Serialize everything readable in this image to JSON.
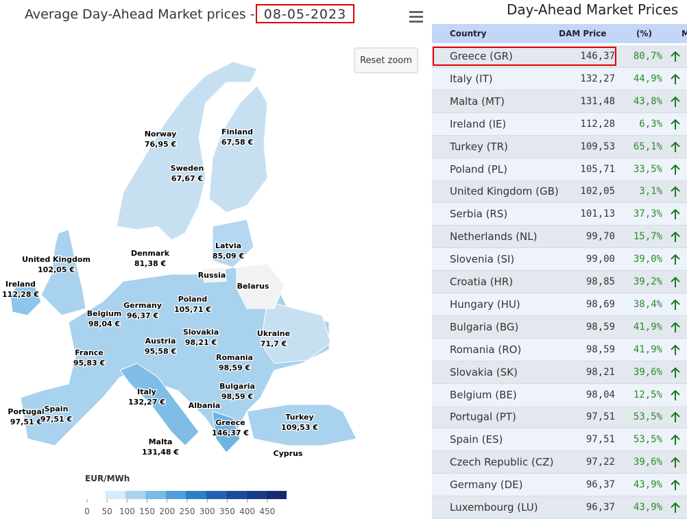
{
  "map": {
    "title": "Average Day-Ahead Market prices -",
    "date": "08-05-2023",
    "reset_button": "Reset zoom",
    "labels": [
      {
        "name": "Norway",
        "price": "76,95 €"
      },
      {
        "name": "Finland",
        "price": "67,58 €"
      },
      {
        "name": "Sweden",
        "price": "67,67 €"
      },
      {
        "name": "Latvia",
        "price": "85,09 €"
      },
      {
        "name": "Denmark",
        "price": "81,38 €"
      },
      {
        "name": "United Kingdom",
        "price": "102,05 €"
      },
      {
        "name": "Ireland",
        "price": "112,28 €"
      },
      {
        "name": "Russia"
      },
      {
        "name": "Belarus"
      },
      {
        "name": "Poland",
        "price": "105,71 €"
      },
      {
        "name": "Germany",
        "price": "96,37 €"
      },
      {
        "name": "Belgium",
        "price": "98,04 €"
      },
      {
        "name": "Ukraine",
        "price": "71,7 €"
      },
      {
        "name": "Slovakia",
        "price": "98,21 €"
      },
      {
        "name": "Austria",
        "price": "95,58 €"
      },
      {
        "name": "France",
        "price": "95,83 €"
      },
      {
        "name": "Romania",
        "price": "98,59 €"
      },
      {
        "name": "Bulgaria",
        "price": "98,59 €"
      },
      {
        "name": "Italy",
        "price": "132,27 €"
      },
      {
        "name": "Albania"
      },
      {
        "name": "Portugal",
        "price": "97,51 €"
      },
      {
        "name": "Spain",
        "price": "97,51 €"
      },
      {
        "name": "Turkey",
        "price": "109,53 €"
      },
      {
        "name": "Greece",
        "price": "146,37 €"
      },
      {
        "name": "Malta",
        "price": "131,48 €"
      },
      {
        "name": "Cyprus"
      }
    ],
    "legend": {
      "title": "EUR/MWh",
      "ticks": [
        0,
        50,
        100,
        150,
        200,
        250,
        300,
        350,
        400,
        450
      ]
    }
  },
  "table": {
    "title": "Day-Ahead Market Prices",
    "headers": [
      "Country",
      "DAM Price",
      "(%)",
      "M"
    ],
    "rows": [
      [
        "Greece (GR)",
        "146,37",
        "80,7%"
      ],
      [
        "Italy (IT)",
        "132,27",
        "44,9%"
      ],
      [
        "Malta (MT)",
        "131,48",
        "43,8%"
      ],
      [
        "Ireland (IE)",
        "112,28",
        "6,3%"
      ],
      [
        "Turkey (TR)",
        "109,53",
        "65,1%"
      ],
      [
        "Poland (PL)",
        "105,71",
        "33,5%"
      ],
      [
        "United Kingdom (GB)",
        "102,05",
        "3,1%"
      ],
      [
        "Serbia (RS)",
        "101,13",
        "37,3%"
      ],
      [
        "Netherlands (NL)",
        "99,70",
        "15,7%"
      ],
      [
        "Slovenia (SI)",
        "99,00",
        "39,0%"
      ],
      [
        "Croatia (HR)",
        "98,85",
        "39,2%"
      ],
      [
        "Hungary (HU)",
        "98,69",
        "38,4%"
      ],
      [
        "Bulgaria (BG)",
        "98,59",
        "41,9%"
      ],
      [
        "Romania (RO)",
        "98,59",
        "41,9%"
      ],
      [
        "Slovakia (SK)",
        "98,21",
        "39,6%"
      ],
      [
        "Belgium (BE)",
        "98,04",
        "12,5%"
      ],
      [
        "Portugal (PT)",
        "97,51",
        "53,5%"
      ],
      [
        "Spain (ES)",
        "97,51",
        "53,5%"
      ],
      [
        "Czech Republic (CZ)",
        "97,22",
        "39,6%"
      ],
      [
        "Germany (DE)",
        "96,37",
        "43,9%"
      ],
      [
        "Luxembourg (LU)",
        "96,37",
        "43,9%"
      ]
    ]
  }
}
